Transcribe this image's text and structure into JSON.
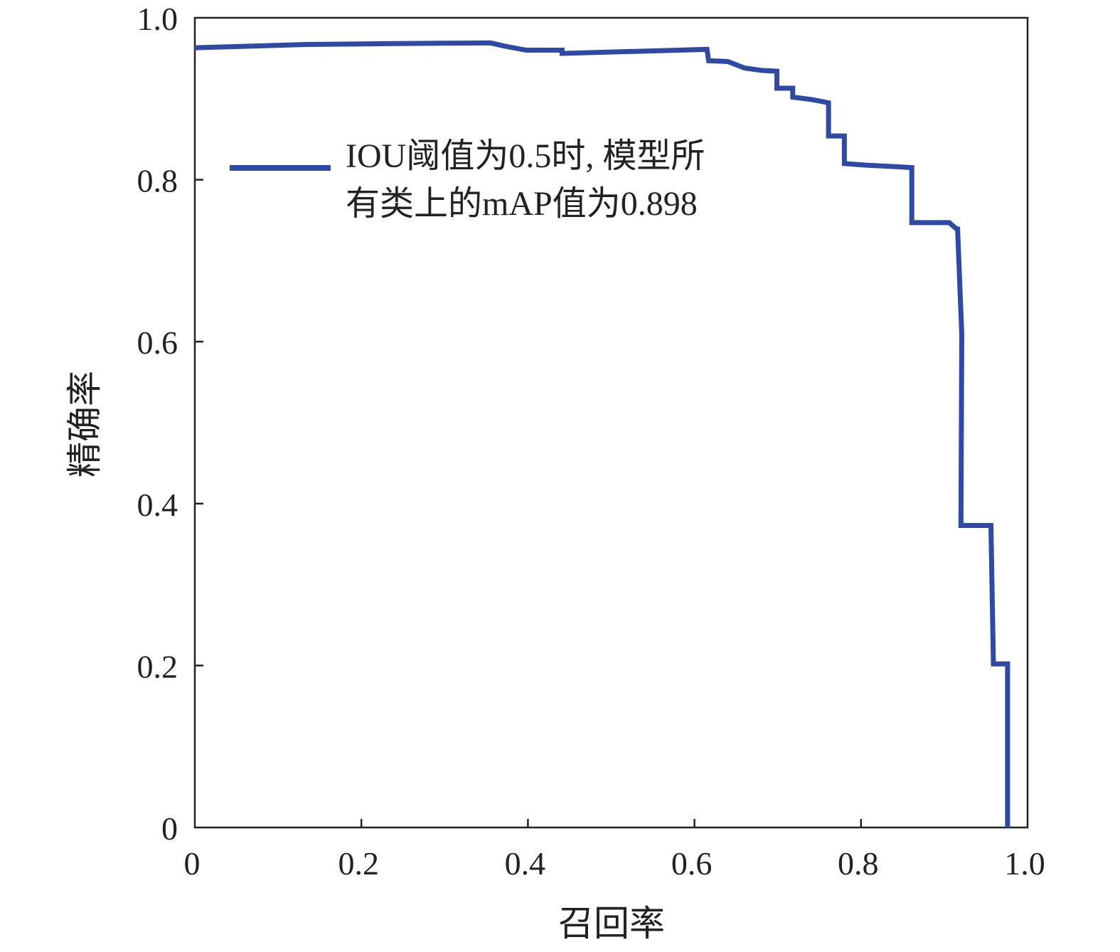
{
  "chart_data": {
    "type": "line",
    "title": "",
    "xlabel": "召回率",
    "ylabel": "精确率",
    "xlim": [
      0,
      1.0
    ],
    "ylim": [
      0,
      1.0
    ],
    "grid": false,
    "xticks": [
      "0",
      "0.2",
      "0.4",
      "0.6",
      "0.8",
      "1.0"
    ],
    "yticks": [
      "0",
      "0.2",
      "0.4",
      "0.6",
      "0.8",
      "1.0"
    ],
    "legend": {
      "placement": "top-center",
      "lines": [
        "IOU阈值为0.5时, 模型所",
        "有类上的mAP值为0.898"
      ]
    },
    "series": [
      {
        "name": "IOU阈值为0.5时, 模型所有类上的mAP值为0.898",
        "color": "#2f4aa5",
        "points": [
          [
            0,
            0.963
          ],
          [
            0.133,
            0.967
          ],
          [
            0.226,
            0.968
          ],
          [
            0.355,
            0.969
          ],
          [
            0.372,
            0.965
          ],
          [
            0.398,
            0.96
          ],
          [
            0.441,
            0.96
          ],
          [
            0.441,
            0.956
          ],
          [
            0.615,
            0.961
          ],
          [
            0.617,
            0.947
          ],
          [
            0.64,
            0.946
          ],
          [
            0.66,
            0.938
          ],
          [
            0.681,
            0.935
          ],
          [
            0.699,
            0.934
          ],
          [
            0.699,
            0.913
          ],
          [
            0.718,
            0.913
          ],
          [
            0.718,
            0.902
          ],
          [
            0.741,
            0.899
          ],
          [
            0.761,
            0.895
          ],
          [
            0.761,
            0.854
          ],
          [
            0.78,
            0.854
          ],
          [
            0.78,
            0.82
          ],
          [
            0.806,
            0.818
          ],
          [
            0.844,
            0.816
          ],
          [
            0.861,
            0.815
          ],
          [
            0.861,
            0.747
          ],
          [
            0.906,
            0.747
          ],
          [
            0.915,
            0.739
          ],
          [
            0.916,
            0.739
          ],
          [
            0.921,
            0.609
          ],
          [
            0.92,
            0.373
          ],
          [
            0.956,
            0.373
          ],
          [
            0.959,
            0.202
          ],
          [
            0.976,
            0.202
          ],
          [
            0.976,
            0.0
          ]
        ]
      }
    ]
  }
}
